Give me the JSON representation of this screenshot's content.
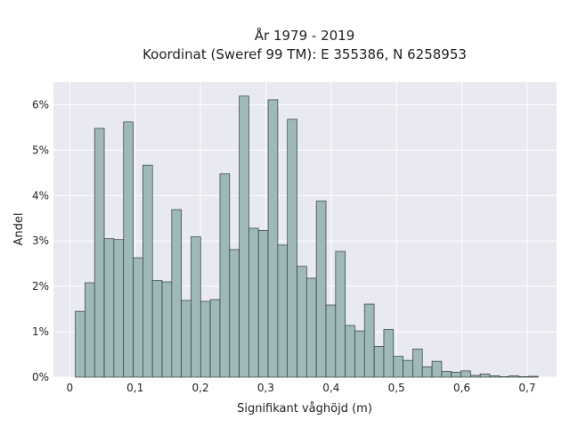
{
  "chart_data": {
    "type": "bar",
    "title": "År 1979 - 2019",
    "subtitle": "Koordinat (Sweref 99 TM): E 355386, N 6258953",
    "xlabel": "Signifikant våghöjd (m)",
    "ylabel": "Andel",
    "xlim": [
      -0.025,
      0.745
    ],
    "ylim": [
      0,
      6.5
    ],
    "grid": true,
    "bar_color": "#9fb8b8",
    "bar_edge_color": "#2f3b3b",
    "background_color": "#e9e9f1",
    "x_ticks": [
      {
        "value": 0,
        "label": "0"
      },
      {
        "value": 0.1,
        "label": "0,1"
      },
      {
        "value": 0.2,
        "label": "0,2"
      },
      {
        "value": 0.3,
        "label": "0,3"
      },
      {
        "value": 0.4,
        "label": "0,4"
      },
      {
        "value": 0.5,
        "label": "0,5"
      },
      {
        "value": 0.6,
        "label": "0,6"
      },
      {
        "value": 0.7,
        "label": "0,7"
      }
    ],
    "y_ticks": [
      {
        "value": 0,
        "label": "0%"
      },
      {
        "value": 1,
        "label": "1%"
      },
      {
        "value": 2,
        "label": "2%"
      },
      {
        "value": 3,
        "label": "3%"
      },
      {
        "value": 4,
        "label": "4%"
      },
      {
        "value": 5,
        "label": "5%"
      },
      {
        "value": 6,
        "label": "6%"
      }
    ],
    "bin_width": 0.01475,
    "bin_starts": [
      0.0085,
      0.0233,
      0.038,
      0.0528,
      0.0675,
      0.0823,
      0.097,
      0.1118,
      0.1265,
      0.1413,
      0.156,
      0.1708,
      0.1855,
      0.2003,
      0.215,
      0.2298,
      0.2445,
      0.2593,
      0.274,
      0.2888,
      0.3035,
      0.3183,
      0.333,
      0.3478,
      0.3625,
      0.3773,
      0.392,
      0.4068,
      0.4215,
      0.4363,
      0.451,
      0.4658,
      0.4805,
      0.4953,
      0.51,
      0.5248,
      0.5395,
      0.5543,
      0.569,
      0.5838,
      0.5985,
      0.6133,
      0.628,
      0.6428,
      0.6575,
      0.6723,
      0.687,
      0.7018
    ],
    "values": [
      1.45,
      2.08,
      5.48,
      3.05,
      3.03,
      5.62,
      2.63,
      4.67,
      2.13,
      2.1,
      3.69,
      1.69,
      3.09,
      1.67,
      1.71,
      4.48,
      2.81,
      6.19,
      3.28,
      3.23,
      6.11,
      2.91,
      5.68,
      2.44,
      2.18,
      3.88,
      1.59,
      2.77,
      1.14,
      1.02,
      1.61,
      0.68,
      1.05,
      0.46,
      0.37,
      0.62,
      0.23,
      0.35,
      0.13,
      0.11,
      0.14,
      0.04,
      0.07,
      0.03,
      0.01,
      0.03,
      0.01,
      0.02
    ]
  }
}
